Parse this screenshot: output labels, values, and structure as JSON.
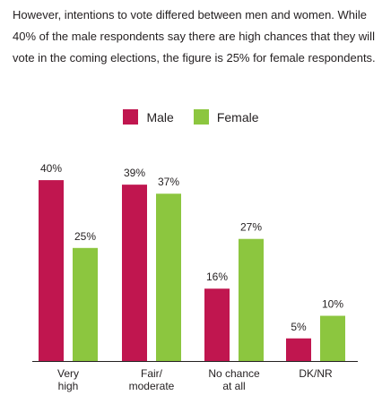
{
  "intro_text": "However, intentions to vote differed between men and women. While 40% of the male respondents say there are high chances that they will vote in the coming elections, the figure is 25% for female respondents.",
  "colors": {
    "male": "#c0164f",
    "female": "#8cc63f",
    "axis": "#231f20"
  },
  "legend": [
    {
      "name": "Male",
      "color": "#c0164f"
    },
    {
      "name": "Female",
      "color": "#8cc63f"
    }
  ],
  "chart_data": {
    "type": "bar",
    "title": "",
    "xlabel": "",
    "ylabel": "",
    "ylim": [
      0,
      42
    ],
    "grid": false,
    "legend_placement": "top-center",
    "categories": [
      [
        "Very",
        "high"
      ],
      [
        "Fair/",
        "moderate"
      ],
      [
        "No chance",
        "at all"
      ],
      [
        "DK/NR"
      ]
    ],
    "series": [
      {
        "name": "Male",
        "color": "#c0164f",
        "values": [
          40,
          39,
          16,
          5
        ],
        "labels": [
          "40%",
          "39%",
          "16%",
          "5%"
        ]
      },
      {
        "name": "Female",
        "color": "#8cc63f",
        "values": [
          25,
          37,
          27,
          10
        ],
        "labels": [
          "25%",
          "37%",
          "27%",
          "10%"
        ]
      }
    ]
  }
}
